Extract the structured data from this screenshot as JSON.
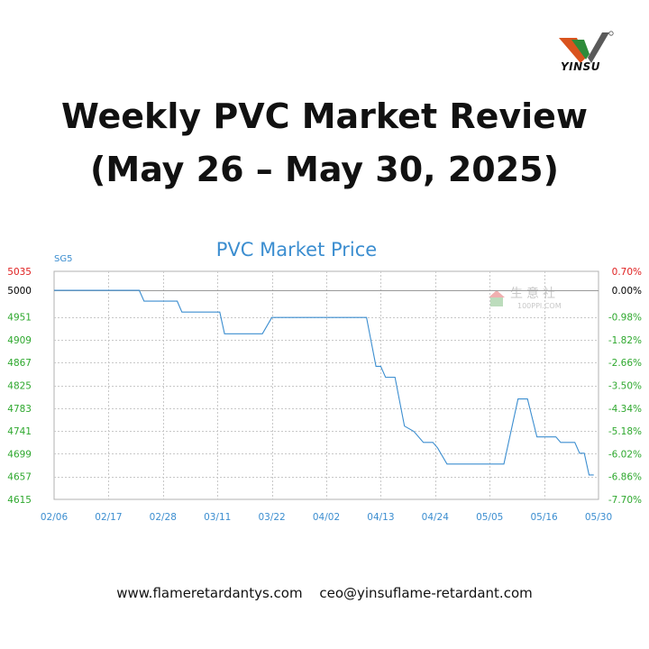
{
  "brand": {
    "name": "YINSU",
    "logo_colors": [
      "#d9531e",
      "#2e8b3a",
      "#5a5a5a"
    ]
  },
  "header": {
    "title_line1": "Weekly PVC Market Review",
    "title_line2": "(May 26 – May 30, 2025)"
  },
  "footer": {
    "website": "www.flameretardantys.com",
    "email": "ceo@yinsuflame-retardant.com"
  },
  "chart_data": {
    "type": "line",
    "title": "PVC Market Price",
    "series_label": "SG5",
    "watermark": "生意社",
    "watermark_sub": "100PPI.COM",
    "x_tick_labels": [
      "02/06",
      "02/17",
      "02/28",
      "03/11",
      "03/22",
      "04/02",
      "04/13",
      "04/24",
      "05/05",
      "05/16",
      "05/30"
    ],
    "xlim": [
      "2025-02-06",
      "2025-06-01"
    ],
    "ylim": [
      4615,
      5035
    ],
    "y_left_ticks": [
      5035,
      5000,
      4951,
      4909,
      4867,
      4825,
      4783,
      4741,
      4699,
      4657,
      4615
    ],
    "y_right_ticks": [
      "0.70%",
      "0.00%",
      "-0.98%",
      "-1.82%",
      "-2.66%",
      "-3.50%",
      "-4.34%",
      "-5.18%",
      "-6.02%",
      "-6.86%",
      "-7.70%"
    ],
    "reference_line": 5000,
    "grid": true,
    "colors": {
      "line": "#3c8ed0",
      "title": "#3c8ed0",
      "top_tick": "#e02020",
      "up_tick": "#e02020",
      "zero_tick": "#000000",
      "down_tick": "#2ea82e",
      "x_tick": "#3c8ed0"
    },
    "series": [
      {
        "name": "SG5",
        "points": [
          [
            "2025-02-06",
            5000
          ],
          [
            "2025-02-24",
            5000
          ],
          [
            "2025-02-25",
            4980
          ],
          [
            "2025-03-04",
            4980
          ],
          [
            "2025-03-05",
            4960
          ],
          [
            "2025-03-13",
            4960
          ],
          [
            "2025-03-14",
            4920
          ],
          [
            "2025-03-22",
            4920
          ],
          [
            "2025-03-24",
            4950
          ],
          [
            "2025-04-13",
            4950
          ],
          [
            "2025-04-15",
            4860
          ],
          [
            "2025-04-16",
            4860
          ],
          [
            "2025-04-17",
            4840
          ],
          [
            "2025-04-19",
            4840
          ],
          [
            "2025-04-21",
            4750
          ],
          [
            "2025-04-23",
            4740
          ],
          [
            "2025-04-25",
            4720
          ],
          [
            "2025-04-27",
            4720
          ],
          [
            "2025-04-28",
            4710
          ],
          [
            "2025-04-30",
            4680
          ],
          [
            "2025-05-12",
            4680
          ],
          [
            "2025-05-15",
            4800
          ],
          [
            "2025-05-17",
            4800
          ],
          [
            "2025-05-19",
            4730
          ],
          [
            "2025-05-23",
            4730
          ],
          [
            "2025-05-24",
            4720
          ],
          [
            "2025-05-27",
            4720
          ],
          [
            "2025-05-28",
            4700
          ],
          [
            "2025-05-29",
            4700
          ],
          [
            "2025-05-30",
            4660
          ],
          [
            "2025-05-31",
            4660
          ]
        ]
      }
    ]
  }
}
